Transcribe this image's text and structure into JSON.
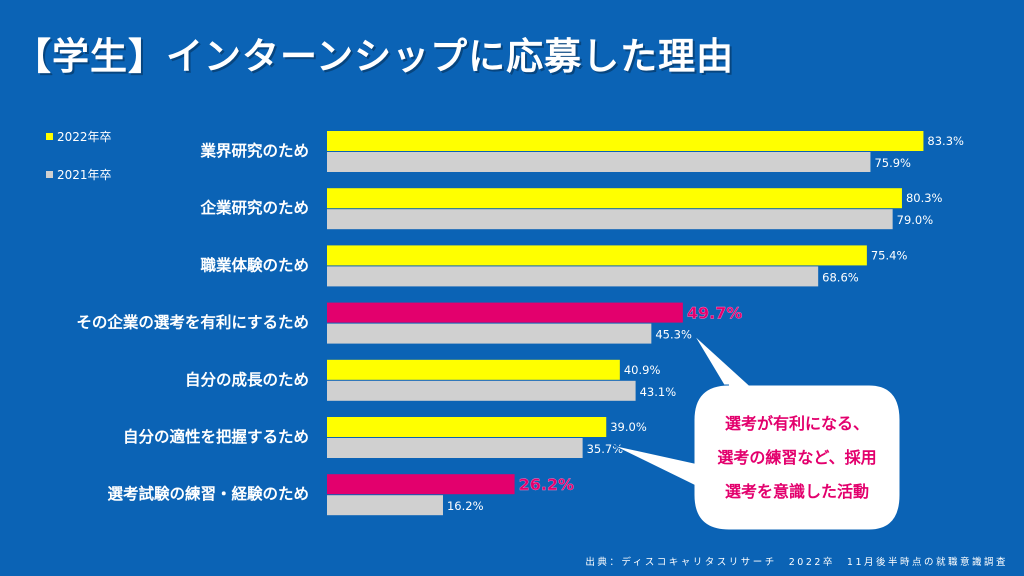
{
  "title": "【学生】インターンシップに応募した理由",
  "legend": [
    {
      "label": "2022年卒",
      "color": "#ffff00"
    },
    {
      "label": "2021年卒",
      "color": "#d0d0d0"
    }
  ],
  "callout": {
    "lines": [
      "選考が有利になる、",
      "選考の練習など、採用",
      "選考を意識した活動"
    ]
  },
  "source": "出典：ディスコキャリタスリサーチ　2022卒　11月後半時点の就職意識調査",
  "colors": {
    "background": "#0b63b5",
    "highlight": "#e3006d",
    "series2022": "#ffff00",
    "series2021": "#d0d0d0"
  },
  "chart_data": {
    "type": "bar",
    "orientation": "horizontal",
    "categories": [
      "業界研究のため",
      "企業研究のため",
      "職業体験のため",
      "その企業の選考を有利にするため",
      "自分の成長のため",
      "自分の適性を把握するため",
      "選考試験の練習・経験のため"
    ],
    "series": [
      {
        "name": "2022年卒",
        "values": [
          83.3,
          80.3,
          75.4,
          49.7,
          40.9,
          39.0,
          26.2
        ],
        "labels": [
          "83.3%",
          "80.3%",
          "75.4%",
          "49.7%",
          "40.9%",
          "39.0%",
          "26.2%"
        ],
        "highlighted": [
          false,
          false,
          false,
          true,
          false,
          false,
          true
        ]
      },
      {
        "name": "2021年卒",
        "values": [
          75.9,
          79.0,
          68.6,
          45.3,
          43.1,
          35.7,
          16.2
        ],
        "labels": [
          "75.9%",
          "79.0%",
          "68.6%",
          "45.3%",
          "43.1%",
          "35.7%",
          "16.2%"
        ]
      }
    ],
    "xlim": [
      0,
      100
    ],
    "grid": false,
    "legend": "top-left"
  }
}
